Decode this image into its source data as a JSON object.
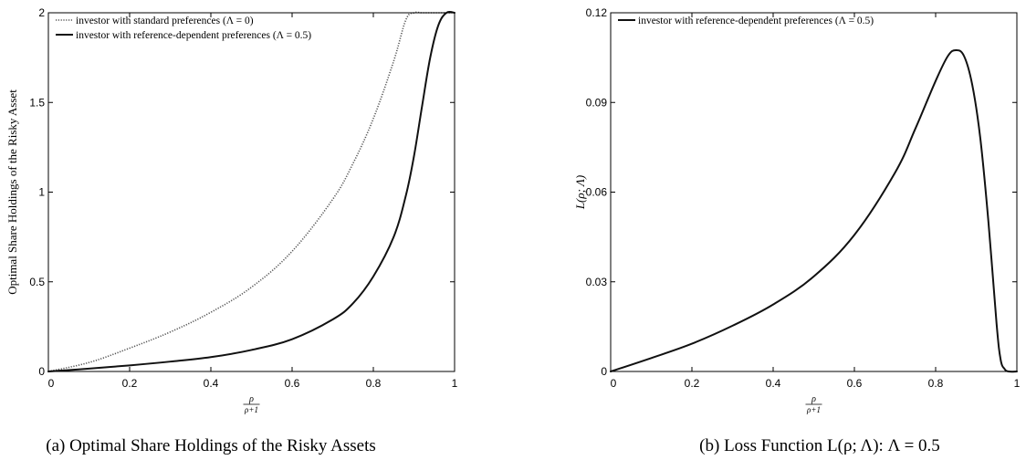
{
  "chart_data": [
    {
      "type": "line",
      "caption": "(a) Optimal Share Holdings of the Risky Assets",
      "xlabel_num": "ρ",
      "xlabel_den": "ρ+1",
      "ylabel": "Optimal Share Holdings of the Risky Asset",
      "xlim": [
        0,
        1
      ],
      "ylim": [
        0,
        2
      ],
      "x_ticks": [
        0,
        0.2,
        0.4,
        0.6,
        0.8,
        1
      ],
      "x_tick_labels": [
        "0",
        "0.2",
        "0.4",
        "0.6",
        "0.8",
        "1"
      ],
      "y_ticks": [
        0,
        0.5,
        1,
        1.5,
        2
      ],
      "y_tick_labels": [
        "0",
        "0.5",
        "1",
        "1.5",
        "2"
      ],
      "legend_position": "top-left",
      "series": [
        {
          "name": "investor with standard preferences (Λ = 0)",
          "style": "dotted",
          "color": "#555555",
          "x": [
            0,
            0.1,
            0.2,
            0.3,
            0.4,
            0.5,
            0.6,
            0.7,
            0.75,
            0.8,
            0.85,
            0.88,
            0.9,
            0.92,
            0.95,
            1
          ],
          "y": [
            0,
            0.05,
            0.13,
            0.22,
            0.33,
            0.47,
            0.67,
            0.96,
            1.16,
            1.41,
            1.73,
            1.96,
            2,
            2,
            2,
            2
          ]
        },
        {
          "name": "investor with reference-dependent preferences (Λ = 0.5)",
          "style": "solid",
          "color": "#111111",
          "x": [
            0,
            0.1,
            0.2,
            0.3,
            0.4,
            0.5,
            0.6,
            0.7,
            0.75,
            0.8,
            0.85,
            0.88,
            0.9,
            0.92,
            0.94,
            0.96,
            0.98,
            1
          ],
          "y": [
            0,
            0.016,
            0.034,
            0.055,
            0.08,
            0.12,
            0.18,
            0.29,
            0.38,
            0.53,
            0.75,
            0.98,
            1.2,
            1.48,
            1.75,
            1.93,
            2,
            2
          ]
        }
      ]
    },
    {
      "type": "line",
      "caption": "(b) Loss Function L(ρ; Λ):  Λ = 0.5",
      "xlabel_num": "ρ",
      "xlabel_den": "ρ+1",
      "ylabel": "L(ρ; Λ)",
      "xlim": [
        0,
        1
      ],
      "ylim": [
        0,
        0.12
      ],
      "x_ticks": [
        0,
        0.2,
        0.4,
        0.6,
        0.8,
        1
      ],
      "x_tick_labels": [
        "0",
        "0.2",
        "0.4",
        "0.6",
        "0.8",
        "1"
      ],
      "y_ticks": [
        0,
        0.03,
        0.06,
        0.09,
        0.12
      ],
      "y_tick_labels": [
        "0",
        "0.03",
        "0.06",
        "0.09",
        "0.12"
      ],
      "legend_position": "top-left",
      "series": [
        {
          "name": "investor with reference-dependent preferences (Λ = 0.5)",
          "style": "solid",
          "color": "#111111",
          "x": [
            0,
            0.1,
            0.2,
            0.3,
            0.4,
            0.5,
            0.6,
            0.7,
            0.75,
            0.8,
            0.83,
            0.85,
            0.87,
            0.89,
            0.91,
            0.93,
            0.95,
            0.96,
            0.97,
            0.98,
            1
          ],
          "y": [
            0,
            0.0045,
            0.0093,
            0.0153,
            0.0224,
            0.0318,
            0.0457,
            0.0665,
            0.0812,
            0.0972,
            0.1055,
            0.1075,
            0.1055,
            0.096,
            0.078,
            0.05,
            0.016,
            0.004,
            0.0008,
            0,
            0
          ]
        }
      ]
    }
  ]
}
